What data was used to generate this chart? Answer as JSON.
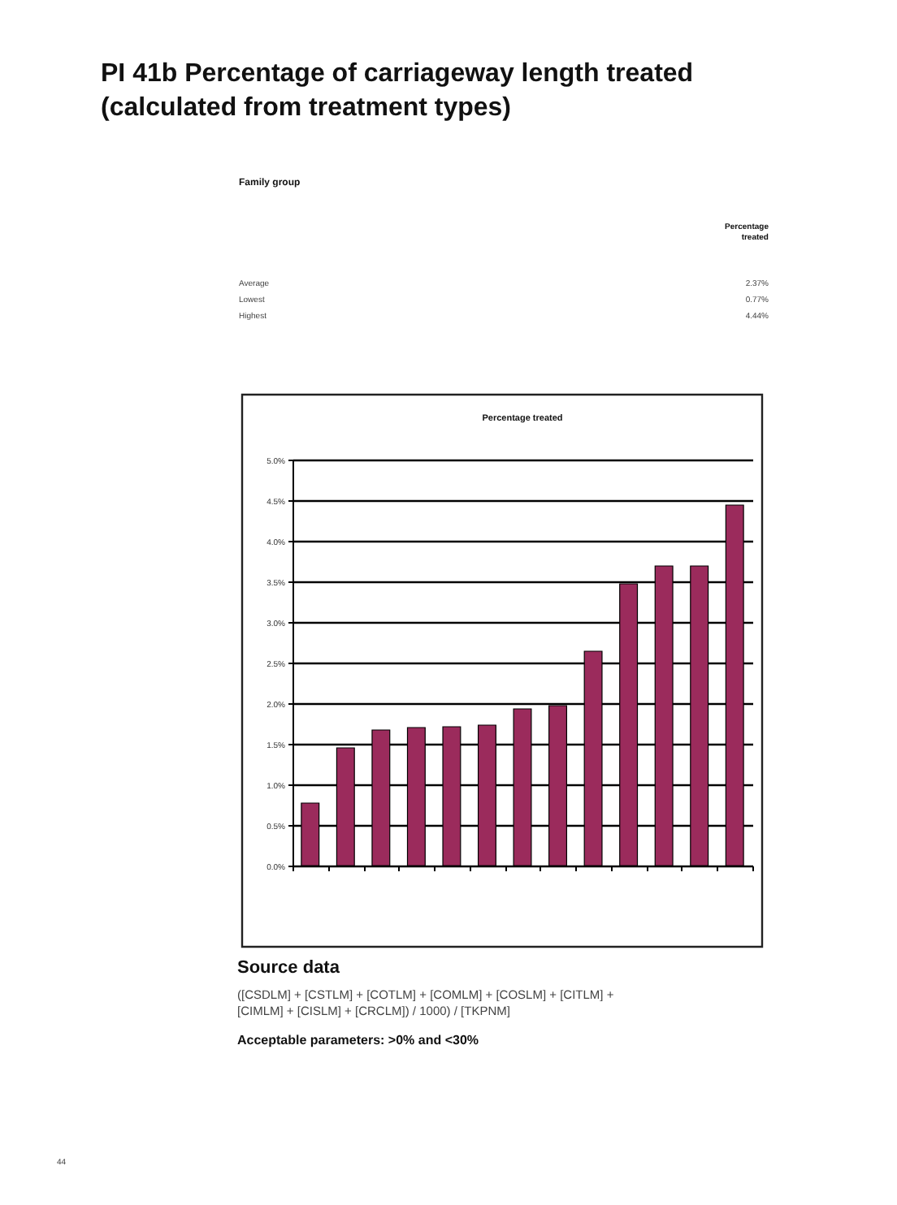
{
  "chart_data": {
    "type": "bar",
    "title": "PI 41b  Percentage of carriageway length treated\n(calculated from treatment types)",
    "subtitle": "Percentage treated",
    "categories": [
      null,
      null,
      null,
      null,
      null,
      null,
      null,
      null,
      null,
      null,
      null,
      null,
      null
    ],
    "values": [
      0.77,
      1.45,
      1.67,
      1.7,
      1.71,
      1.73,
      1.93,
      1.97,
      2.64,
      3.47,
      3.69,
      3.69,
      4.44
    ],
    "color": "#9b2b5c",
    "ylim": [
      0,
      5
    ],
    "yticks": [
      {
        "value": 0,
        "label": "0.0%"
      },
      {
        "value": 0.5,
        "label": "0.5%"
      },
      {
        "value": 1,
        "label": "1.0%"
      },
      {
        "value": 1.5,
        "label": "1.5%"
      },
      {
        "value": 2,
        "label": "2.0%"
      },
      {
        "value": 2.5,
        "label": "2.5%"
      },
      {
        "value": 3,
        "label": "3.0%"
      },
      {
        "value": 3.5,
        "label": "3.5%"
      },
      {
        "value": 4,
        "label": "4.0%"
      },
      {
        "value": 4.5,
        "label": "4.5%"
      },
      {
        "value": 5,
        "label": "5.0%"
      }
    ],
    "grid": "y",
    "tick_labels": "y",
    "annotations": [
      "Family group",
      "Percentage\ntreated",
      "Average",
      "2.37%",
      "Lowest",
      "0.77%",
      "Highest",
      "4.44%",
      "Source data",
      "([CSDLM] + [CSTLM] + [COTLM] + [COMLM] + [COSLM] + [CITLM] +\n[CIMLM] + [CISLM] + [CRCLM]) / 1000) / [TKPNM]",
      "Acceptable parameters: >0% and <30%",
      "44"
    ]
  }
}
